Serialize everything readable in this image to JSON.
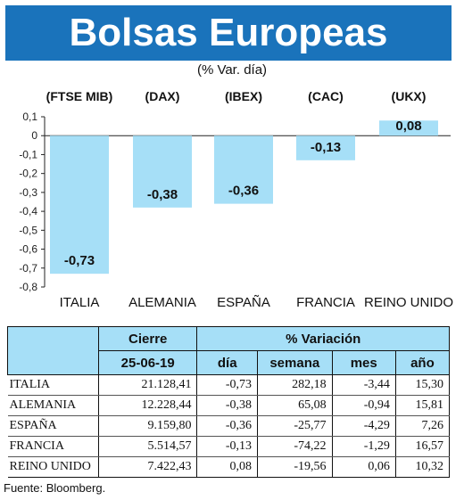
{
  "title": "Bolsas Europeas",
  "subtitle": "(% Var. día)",
  "source": "Fuente: Bloomberg.",
  "colors": {
    "header": "#1a73bb",
    "bar": "#a6dff7",
    "table_header": "#a6dff7"
  },
  "chart_data": {
    "type": "bar",
    "indices": [
      "(FTSE MIB)",
      "(DAX)",
      "(IBEX)",
      "(CAC)",
      "(UKX)"
    ],
    "categories": [
      "ITALIA",
      "ALEMANIA",
      "ESPAÑA",
      "FRANCIA",
      "REINO UNIDO"
    ],
    "values": [
      -0.73,
      -0.38,
      -0.36,
      -0.13,
      0.08
    ],
    "value_labels": [
      "-0,73",
      "-0,38",
      "-0,36",
      "-0,13",
      "0,08"
    ],
    "ylim": [
      -0.8,
      0.1
    ],
    "ticks": [
      0.1,
      0,
      -0.1,
      -0.2,
      -0.3,
      -0.4,
      -0.5,
      -0.6,
      -0.7,
      -0.8
    ],
    "tick_labels": [
      "0,1",
      "0",
      "-0,1",
      "-0,2",
      "-0,3",
      "-0,4",
      "-0,5",
      "-0,6",
      "-0,7",
      "-0,8"
    ],
    "grid": false
  },
  "table": {
    "group_headers": [
      "Cierre",
      "% Variación"
    ],
    "columns": [
      "25-06-19",
      "día",
      "semana",
      "mes",
      "año"
    ],
    "rows": [
      {
        "name": "ITALIA",
        "cells": [
          "21.128,41",
          "-0,73",
          "282,18",
          "-3,44",
          "15,30"
        ]
      },
      {
        "name": "ALEMANIA",
        "cells": [
          "12.228,44",
          "-0,38",
          "65,08",
          "-0,94",
          "15,81"
        ]
      },
      {
        "name": "ESPAÑA",
        "cells": [
          "9.159,80",
          "-0,36",
          "-25,77",
          "-4,29",
          "7,26"
        ]
      },
      {
        "name": "FRANCIA",
        "cells": [
          "5.514,57",
          "-0,13",
          "-74,22",
          "-1,29",
          "16,57"
        ]
      },
      {
        "name": "REINO UNIDO",
        "cells": [
          "7.422,43",
          "0,08",
          "-19,56",
          "0,06",
          "10,32"
        ]
      }
    ]
  }
}
